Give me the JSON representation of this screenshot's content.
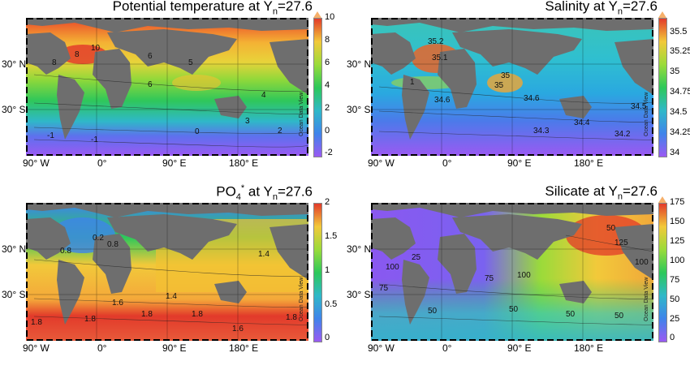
{
  "panels": [
    {
      "id": "temperature",
      "title_main": "Potential temperature at Y",
      "title_sub": "n",
      "title_sup": "",
      "title_tail": "=27.6",
      "colorbar": {
        "min": -2,
        "max": 10,
        "ticks": [
          "10",
          "8",
          "6",
          "4",
          "2",
          "0",
          "-2"
        ],
        "colors": [
          "#ff9a4a",
          "#e23a2a",
          "#f2c93a",
          "#9adb3a",
          "#2dc85a",
          "#2fb8c8",
          "#3f84ea",
          "#9a5af2"
        ]
      },
      "contour_labels": [
        "10",
        "8",
        "6",
        "5",
        "4",
        "3",
        "2",
        "0",
        "-1",
        "-1",
        "6",
        "8"
      ]
    },
    {
      "id": "salinity",
      "title_main": "Salinity at Y",
      "title_sub": "n",
      "title_sup": "",
      "title_tail": "=27.6",
      "colorbar": {
        "min": 34,
        "max": 35.5,
        "ticks": [
          "35.5",
          "35.25",
          "35",
          "34.75",
          "34.5",
          "34.25",
          "34"
        ],
        "colors": [
          "#ff9a4a",
          "#e23a2a",
          "#f2c93a",
          "#9adb3a",
          "#2dc85a",
          "#2fb8c8",
          "#3f84ea",
          "#9a5af2"
        ]
      },
      "contour_labels": [
        "35.2",
        "35.1",
        "35",
        "35",
        "34.6",
        "34.6",
        "34.5",
        "34.4",
        "34.3",
        "34.2",
        "1"
      ]
    },
    {
      "id": "po4star",
      "title_main": "PO",
      "title_sub": "4",
      "title_sup": "*",
      "title_tail": " at Y",
      "title_sub2": "n",
      "title_tail2": "=27.6",
      "colorbar": {
        "min": 0,
        "max": 2,
        "ticks": [
          "2",
          "1.5",
          "1",
          "0.5",
          "0"
        ],
        "colors": [
          "#ff9a4a",
          "#e23a2a",
          "#f2c93a",
          "#9adb3a",
          "#2dc85a",
          "#2fb8c8",
          "#3f84ea",
          "#9a5af2"
        ]
      },
      "contour_labels": [
        "0.8",
        "0.2",
        "0.8",
        "1.4",
        "1.6",
        "1.4",
        "1.8",
        "1.8",
        "1.8",
        "1.8",
        "1.6",
        "1.8"
      ]
    },
    {
      "id": "silicate",
      "title_main": "Silicate at Y",
      "title_sub": "n",
      "title_sup": "",
      "title_tail": "=27.6",
      "colorbar": {
        "min": 0,
        "max": 175,
        "ticks": [
          "175",
          "150",
          "125",
          "100",
          "75",
          "50",
          "25",
          "0"
        ],
        "colors": [
          "#ff9a4a",
          "#e23a2a",
          "#f2c93a",
          "#9adb3a",
          "#2dc85a",
          "#2fb8c8",
          "#3f84ea",
          "#9a5af2"
        ]
      },
      "contour_labels": [
        "50",
        "125",
        "100",
        "100",
        "25",
        "100",
        "75",
        "75",
        "50",
        "50",
        "50",
        "50"
      ]
    }
  ],
  "lat_labels": [
    "30° N",
    "30° S"
  ],
  "lon_labels": [
    "90° W",
    "0°",
    "90° E",
    "180° E"
  ],
  "odv_label": "Ocean Data View",
  "land_color": "#6e6e6e"
}
